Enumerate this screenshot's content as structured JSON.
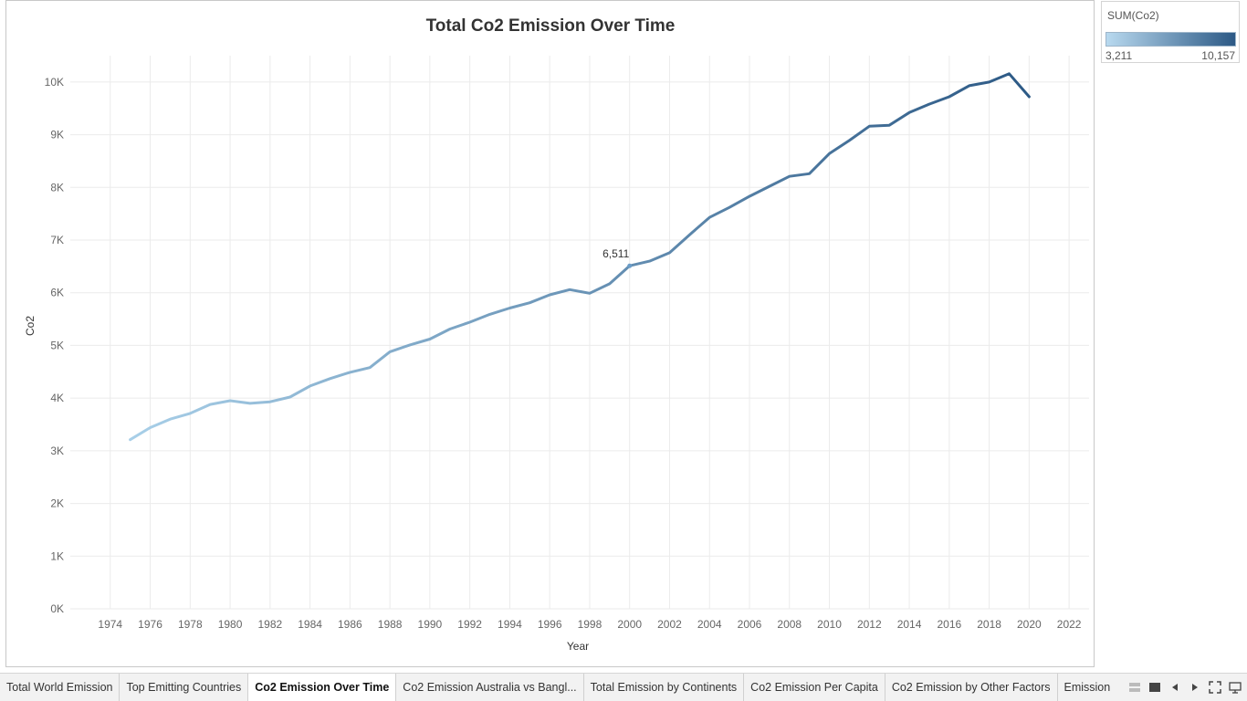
{
  "window": {
    "title": "Total Co2 Emission Over Time"
  },
  "colors": {
    "line_start": "#a8cfe8",
    "line_end": "#2c5985",
    "grid": "#ebebeb",
    "axis_text": "#666666",
    "title_text": "#333333"
  },
  "legend": {
    "title": "SUM(Co2)",
    "min_label": "3,211",
    "max_label": "10,157"
  },
  "tabs": [
    {
      "label": "Total World Emission",
      "active": false
    },
    {
      "label": "Top Emitting Countries",
      "active": false
    },
    {
      "label": "Co2 Emission Over Time",
      "active": true
    },
    {
      "label": "Co2 Emission Australia vs Bangl...",
      "active": false
    },
    {
      "label": "Total Emission by Continents",
      "active": false
    },
    {
      "label": "Co2 Emission Per Capita",
      "active": false
    },
    {
      "label": "Co2 Emission by Other Factors",
      "active": false
    },
    {
      "label": "Emission",
      "active": false
    }
  ],
  "tab_controls": [
    "grid-view-icon",
    "fill-view-icon",
    "prev-arrow-icon",
    "next-arrow-icon",
    "fullscreen-icon",
    "presentation-icon"
  ],
  "chart_data": {
    "type": "line",
    "title": "Total Co2 Emission Over Time",
    "xlabel": "Year",
    "ylabel": "Co2",
    "xlim": [
      1972,
      2023
    ],
    "ylim": [
      0,
      10500
    ],
    "x_ticks": [
      1974,
      1976,
      1978,
      1980,
      1982,
      1984,
      1986,
      1988,
      1990,
      1992,
      1994,
      1996,
      1998,
      2000,
      2002,
      2004,
      2006,
      2008,
      2010,
      2012,
      2014,
      2016,
      2018,
      2020,
      2022
    ],
    "y_ticks": [
      0,
      1000,
      2000,
      3000,
      4000,
      5000,
      6000,
      7000,
      8000,
      9000,
      10000
    ],
    "y_tick_labels": [
      "0K",
      "1K",
      "2K",
      "3K",
      "4K",
      "5K",
      "6K",
      "7K",
      "8K",
      "9K",
      "10K"
    ],
    "color_scale": {
      "field": "SUM(Co2)",
      "min": 3211,
      "max": 10157
    },
    "annotation": {
      "x": 2000,
      "y": 6511,
      "label": "6,511"
    },
    "series": [
      {
        "name": "SUM(Co2)",
        "x": [
          1975,
          1976,
          1977,
          1978,
          1979,
          1980,
          1981,
          1982,
          1983,
          1984,
          1985,
          1986,
          1987,
          1988,
          1989,
          1990,
          1991,
          1992,
          1993,
          1994,
          1995,
          1996,
          1997,
          1998,
          1999,
          2000,
          2001,
          2002,
          2003,
          2004,
          2005,
          2006,
          2007,
          2008,
          2009,
          2010,
          2011,
          2012,
          2013,
          2014,
          2015,
          2016,
          2017,
          2018,
          2019,
          2020
        ],
        "values": [
          3211,
          3440,
          3600,
          3710,
          3880,
          3950,
          3900,
          3930,
          4020,
          4230,
          4370,
          4490,
          4580,
          4880,
          5010,
          5120,
          5310,
          5440,
          5590,
          5710,
          5810,
          5960,
          6060,
          5990,
          6170,
          6511,
          6600,
          6760,
          7100,
          7430,
          7620,
          7830,
          8020,
          8210,
          8260,
          8640,
          8890,
          9160,
          9180,
          9420,
          9580,
          9720,
          9930,
          10000,
          10157,
          9720
        ]
      }
    ]
  }
}
